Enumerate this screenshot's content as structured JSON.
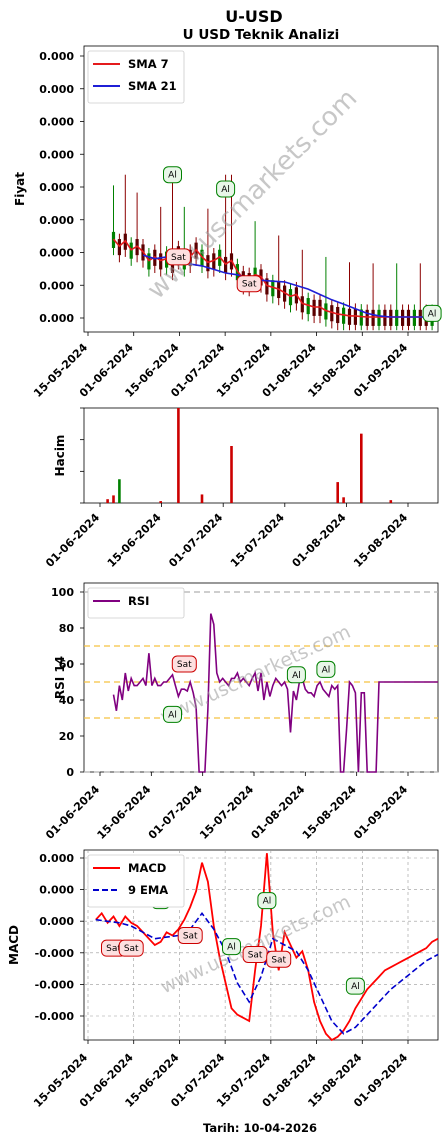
{
  "header": {
    "title": "U-USD",
    "subtitle": "U USD Teknik Analizi"
  },
  "footer": {
    "date_label": "Tarih: 10-04-2026"
  },
  "watermark": "www.uscmarkets.com",
  "colors": {
    "sma7": "#e41a1c",
    "sma21": "#1f1fd6",
    "up": "#008000",
    "down": "#cc0000",
    "rsi": "#800080",
    "macd": "#ff0000",
    "ema9": "#0000cc"
  },
  "chart_data": [
    {
      "type": "line",
      "panel": "price",
      "ylabel": "Fiyat",
      "yticks": [
        "0.000",
        "0.000",
        "0.000",
        "0.000",
        "0.000",
        "0.000",
        "0.000",
        "0.000",
        "0.000"
      ],
      "xticks": [
        "15-05-2024",
        "01-06-2024",
        "15-06-2024",
        "01-07-2024",
        "15-07-2024",
        "01-08-2024",
        "15-08-2024",
        "01-09-2024"
      ],
      "xlim": [
        0,
        120
      ],
      "ylim": [
        0,
        8
      ],
      "series": [
        {
          "name": "SMA 7",
          "x": [
            10,
            12,
            14,
            16,
            18,
            20,
            22,
            24,
            26,
            28,
            30,
            32,
            34,
            36,
            38,
            40,
            42,
            44,
            46,
            48,
            50,
            52,
            54,
            56,
            58,
            60,
            62,
            64,
            66,
            68,
            70,
            72,
            74,
            76,
            78,
            80,
            82,
            84,
            86,
            88,
            90,
            92,
            94,
            96,
            98,
            100,
            102,
            104,
            106,
            108,
            110,
            112,
            114,
            116,
            118
          ],
          "values": [
            2.6,
            2.4,
            2.55,
            2.3,
            2.4,
            2.25,
            2.0,
            2.1,
            2.0,
            2.05,
            1.9,
            2.2,
            2.0,
            2.1,
            2.3,
            2.1,
            1.95,
            2.0,
            2.1,
            1.9,
            2.0,
            1.7,
            1.5,
            1.45,
            1.6,
            1.55,
            1.3,
            1.25,
            1.2,
            1.1,
            1.0,
            1.05,
            0.8,
            0.75,
            0.7,
            0.7,
            0.6,
            0.55,
            0.5,
            0.48,
            0.45,
            0.45,
            0.43,
            0.42,
            0.42,
            0.42,
            0.42,
            0.42,
            0.42,
            0.42,
            0.42,
            0.42,
            0.42,
            0.42,
            0.42
          ]
        },
        {
          "name": "SMA 21",
          "x": [
            20,
            24,
            28,
            32,
            36,
            40,
            44,
            48,
            52,
            56,
            60,
            64,
            68,
            72,
            76,
            80,
            84,
            88,
            92,
            96,
            100,
            104,
            108,
            112,
            116,
            118
          ],
          "values": [
            2.15,
            2.05,
            2.1,
            2.0,
            1.9,
            1.85,
            1.75,
            1.65,
            1.6,
            1.5,
            1.45,
            1.42,
            1.4,
            1.3,
            1.2,
            1.05,
            0.9,
            0.78,
            0.65,
            0.52,
            0.45,
            0.42,
            0.42,
            0.42,
            0.42,
            0.42
          ]
        }
      ],
      "annotations": [
        {
          "label": "Al",
          "x": 30,
          "y": 4.4
        },
        {
          "label": "Al",
          "x": 48,
          "y": 4.0
        },
        {
          "label": "Sat",
          "x": 32,
          "y": 2.1
        },
        {
          "label": "Sat",
          "x": 56,
          "y": 1.35
        },
        {
          "label": "Al",
          "x": 118,
          "y": 0.52
        }
      ],
      "legend_position": "top-left"
    },
    {
      "type": "bar",
      "panel": "volume",
      "ylabel": "Hacim",
      "xticks": [
        "01-06-2024",
        "15-06-2024",
        "01-07-2024",
        "15-07-2024",
        "01-08-2024",
        "15-08-2024"
      ],
      "xlim": [
        0,
        120
      ],
      "ylim": [
        0,
        100
      ],
      "bars": [
        {
          "x": 8,
          "value": 4,
          "dir": "down"
        },
        {
          "x": 10,
          "value": 8,
          "dir": "down"
        },
        {
          "x": 12,
          "value": 25,
          "dir": "up"
        },
        {
          "x": 26,
          "value": 2,
          "dir": "down"
        },
        {
          "x": 32,
          "value": 100,
          "dir": "down"
        },
        {
          "x": 40,
          "value": 9,
          "dir": "down"
        },
        {
          "x": 50,
          "value": 60,
          "dir": "down"
        },
        {
          "x": 86,
          "value": 22,
          "dir": "down"
        },
        {
          "x": 88,
          "value": 6,
          "dir": "down"
        },
        {
          "x": 94,
          "value": 73,
          "dir": "down"
        },
        {
          "x": 104,
          "value": 3,
          "dir": "down"
        }
      ]
    },
    {
      "type": "line",
      "panel": "rsi",
      "ylabel": "RSI 14",
      "ylim": [
        0,
        105
      ],
      "yticks": [
        "0",
        "20",
        "40",
        "60",
        "80",
        "100"
      ],
      "xticks": [
        "01-06-2024",
        "15-06-2024",
        "01-07-2024",
        "15-07-2024",
        "01-08-2024",
        "15-08-2024",
        "01-09-2024"
      ],
      "hlines": [
        0,
        30,
        50,
        70,
        100
      ],
      "xlim": [
        0,
        120
      ],
      "series": [
        {
          "name": "RSI",
          "x": [
            10,
            11,
            12,
            13,
            14,
            15,
            16,
            17,
            18,
            19,
            20,
            21,
            22,
            23,
            24,
            25,
            26,
            27,
            28,
            29,
            30,
            31,
            32,
            33,
            34,
            35,
            36,
            37,
            38,
            39,
            40,
            41,
            42,
            43,
            44,
            45,
            46,
            47,
            48,
            49,
            50,
            51,
            52,
            53,
            54,
            55,
            56,
            57,
            58,
            59,
            60,
            61,
            62,
            63,
            64,
            65,
            66,
            67,
            68,
            69,
            70,
            71,
            72,
            73,
            74,
            75,
            76,
            77,
            78,
            79,
            80,
            81,
            82,
            83,
            84,
            85,
            86,
            87,
            88,
            89,
            90,
            91,
            92,
            93,
            94,
            95,
            96,
            97,
            98,
            99,
            100,
            101,
            102,
            103,
            104,
            105,
            106,
            108,
            110,
            112,
            114,
            116,
            118,
            120
          ],
          "values": [
            43,
            34,
            48,
            40,
            55,
            45,
            52,
            48,
            48,
            50,
            52,
            48,
            66,
            48,
            52,
            48,
            48,
            50,
            50,
            52,
            54,
            48,
            42,
            46,
            46,
            45,
            50,
            44,
            36,
            0,
            0,
            0,
            35,
            88,
            82,
            55,
            50,
            52,
            50,
            48,
            52,
            52,
            55,
            50,
            52,
            50,
            48,
            52,
            55,
            45,
            55,
            40,
            50,
            42,
            48,
            52,
            50,
            48,
            50,
            46,
            22,
            45,
            40,
            50,
            52,
            46,
            44,
            44,
            42,
            48,
            50,
            46,
            44,
            42,
            48,
            46,
            48,
            0,
            0,
            24,
            50,
            48,
            44,
            0,
            44,
            44,
            0,
            0,
            0,
            0,
            50,
            50,
            50,
            50,
            50,
            50,
            50,
            50,
            50,
            50,
            50,
            50,
            50,
            50
          ]
        }
      ],
      "annotations": [
        {
          "label": "Sat",
          "x": 34,
          "y": 60
        },
        {
          "label": "Al",
          "x": 30,
          "y": 32
        },
        {
          "label": "Al",
          "x": 72,
          "y": 54
        },
        {
          "label": "Al",
          "x": 82,
          "y": 57
        }
      ],
      "legend_position": "top-left"
    },
    {
      "type": "line",
      "panel": "macd",
      "ylabel": "MACD",
      "yticks": [
        "0.000",
        "0.000",
        "0.000",
        "-0.000",
        "-0.000",
        "-0.000"
      ],
      "xticks": [
        "15-05-2024",
        "01-06-2024",
        "15-06-2024",
        "01-07-2024",
        "15-07-2024",
        "01-08-2024",
        "15-08-2024",
        "01-09-2024"
      ],
      "xlim": [
        0,
        120
      ],
      "ylim": [
        -3.8,
        2.2
      ],
      "series": [
        {
          "name": "MACD",
          "x": [
            4,
            6,
            8,
            10,
            12,
            14,
            16,
            18,
            20,
            22,
            24,
            26,
            28,
            30,
            32,
            34,
            36,
            38,
            40,
            42,
            44,
            46,
            48,
            50,
            52,
            54,
            56,
            58,
            60,
            62,
            64,
            66,
            68,
            70,
            72,
            74,
            76,
            78,
            80,
            82,
            84,
            86,
            88,
            90,
            92,
            94,
            96,
            98,
            100,
            102,
            104,
            106,
            108,
            110,
            112,
            114,
            116,
            118,
            120
          ],
          "values": [
            0.0,
            0.2,
            -0.1,
            0.1,
            -0.2,
            0.1,
            -0.1,
            -0.2,
            -0.4,
            -0.6,
            -0.8,
            -0.7,
            -0.4,
            -0.5,
            -0.3,
            0.0,
            0.4,
            0.9,
            1.8,
            1.2,
            -0.2,
            -1.2,
            -2.0,
            -2.8,
            -3.0,
            -3.1,
            -3.2,
            -1.6,
            -0.2,
            2.1,
            -0.4,
            -1.6,
            -0.4,
            -0.8,
            -1.2,
            -1.0,
            -1.6,
            -2.6,
            -3.2,
            -3.6,
            -3.8,
            -3.7,
            -3.5,
            -3.2,
            -2.8,
            -2.5,
            -2.2,
            -2.0,
            -1.8,
            -1.6,
            -1.5,
            -1.4,
            -1.3,
            -1.2,
            -1.1,
            -1.0,
            -0.9,
            -0.7,
            -0.6
          ]
        },
        {
          "name": "9 EMA",
          "x": [
            4,
            8,
            12,
            16,
            20,
            24,
            28,
            32,
            36,
            40,
            44,
            48,
            52,
            56,
            60,
            64,
            68,
            72,
            76,
            80,
            84,
            88,
            92,
            96,
            100,
            104,
            108,
            112,
            116,
            120
          ],
          "values": [
            0.0,
            -0.05,
            -0.1,
            -0.2,
            -0.4,
            -0.6,
            -0.55,
            -0.5,
            -0.3,
            0.2,
            -0.3,
            -1.0,
            -2.0,
            -2.6,
            -1.8,
            -0.6,
            -0.8,
            -1.0,
            -1.6,
            -2.4,
            -3.2,
            -3.6,
            -3.4,
            -3.0,
            -2.6,
            -2.2,
            -1.9,
            -1.6,
            -1.3,
            -1.1
          ]
        }
      ],
      "annotations": [
        {
          "label": "Al",
          "x": 10,
          "y": 1.1
        },
        {
          "label": "Sat",
          "x": 10,
          "y": -0.9
        },
        {
          "label": "Sat",
          "x": 16,
          "y": -0.9
        },
        {
          "label": "Al",
          "x": 26,
          "y": 0.6
        },
        {
          "label": "Sat",
          "x": 36,
          "y": -0.5
        },
        {
          "label": "Al",
          "x": 50,
          "y": -0.85
        },
        {
          "label": "Sat",
          "x": 58,
          "y": -1.1
        },
        {
          "label": "Al",
          "x": 62,
          "y": 0.6
        },
        {
          "label": "Sat",
          "x": 66,
          "y": -1.25
        },
        {
          "label": "Al",
          "x": 92,
          "y": -2.1
        }
      ],
      "legend_position": "top-left",
      "footer_label": "Tarih: 10-04-2026"
    }
  ]
}
